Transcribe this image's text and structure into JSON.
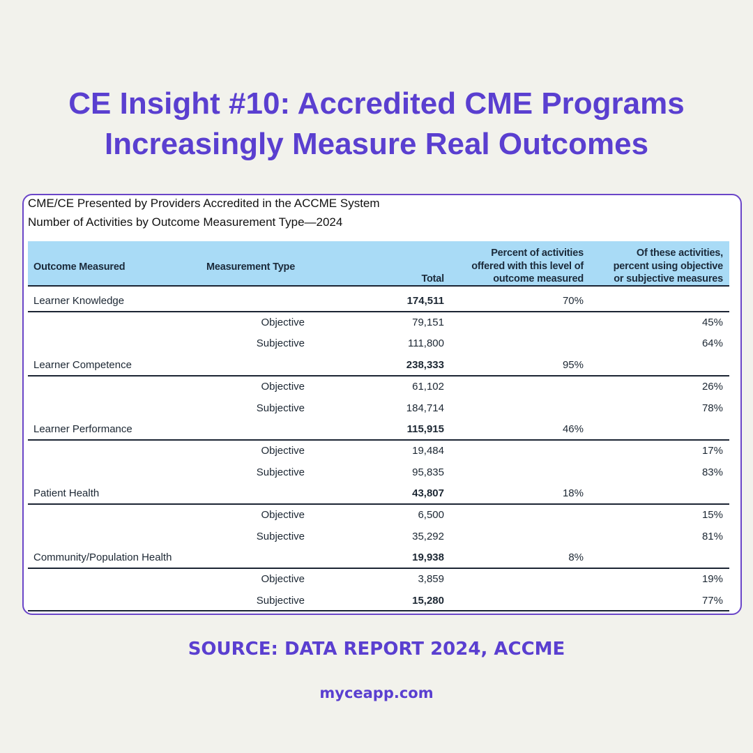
{
  "title": {
    "line1": "CE Insight #10: Accredited CME Programs",
    "line2": "Increasingly Measure Real Outcomes"
  },
  "table": {
    "caption1": "CME/CE Presented by Providers Accredited in the ACCME System",
    "caption2": "Number of Activities by Outcome Measurement Type—2024",
    "headers": {
      "outcome": "Outcome Measured",
      "type": "Measurement Type",
      "total": "Total",
      "percent": [
        "Percent of activities",
        "offered with this level of",
        "outcome measured"
      ],
      "of_these": [
        "Of these activities,",
        "percent using objective",
        "or subjective measures"
      ]
    },
    "rows": [
      {
        "outcome": "Learner Knowledge",
        "total": "174,511",
        "percent": "70%",
        "objective": {
          "label": "Objective",
          "total": "79,151",
          "pct": "45%"
        },
        "subjective": {
          "label": "Subjective",
          "total": "111,800",
          "pct": "64%"
        }
      },
      {
        "outcome": "Learner Competence",
        "total": "238,333",
        "percent": "95%",
        "objective": {
          "label": "Objective",
          "total": "61,102",
          "pct": "26%"
        },
        "subjective": {
          "label": "Subjective",
          "total": "184,714",
          "pct": "78%"
        }
      },
      {
        "outcome": "Learner Performance",
        "total": "115,915",
        "percent": "46%",
        "objective": {
          "label": "Objective",
          "total": "19,484",
          "pct": "17%"
        },
        "subjective": {
          "label": "Subjective",
          "total": "95,835",
          "pct": "83%"
        }
      },
      {
        "outcome": "Patient Health",
        "total": "43,807",
        "percent": "18%",
        "objective": {
          "label": "Objective",
          "total": "6,500",
          "pct": "15%"
        },
        "subjective": {
          "label": "Subjective",
          "total": "35,292",
          "pct": "81%"
        }
      },
      {
        "outcome": "Community/Population Health",
        "total": "19,938",
        "percent": "8%",
        "objective": {
          "label": "Objective",
          "total": "3,859",
          "pct": "19%"
        },
        "subjective": {
          "label": "Subjective",
          "total": "15,280",
          "pct": "77%"
        }
      }
    ]
  },
  "source": "SOURCE: DATA REPORT 2024, ACCME",
  "website": "myceapp.com"
}
